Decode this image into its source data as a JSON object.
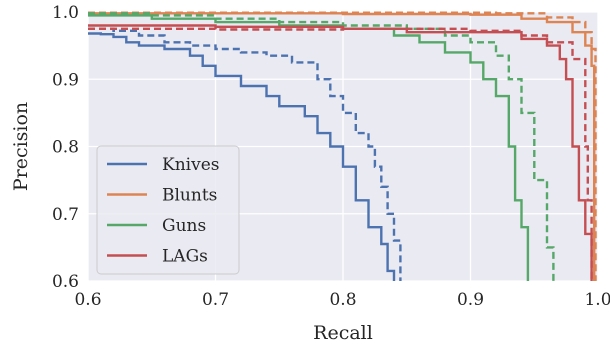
{
  "chart_data": {
    "type": "line",
    "xlabel": "Recall",
    "ylabel": "Precision",
    "xlim": [
      0.6,
      1.0
    ],
    "ylim": [
      0.6,
      1.0
    ],
    "x_ticks": [
      0.6,
      0.7,
      0.8,
      0.9,
      1.0
    ],
    "x_tick_labels": [
      "0.6",
      "0.7",
      "0.8",
      "0.9",
      "1.0"
    ],
    "y_ticks": [
      0.6,
      0.7,
      0.8,
      0.9,
      1.0
    ],
    "y_tick_labels": [
      "0.6",
      "0.7",
      "0.8",
      "0.9",
      "1.0"
    ],
    "grid": true,
    "background": "#eaeaf2",
    "legend_position": "lower-left",
    "line_styles": [
      "solid",
      "dashed"
    ],
    "series": [
      {
        "name": "Knives",
        "color": "#4c72b0",
        "solid": [
          [
            0.6,
            0.968
          ],
          [
            0.61,
            0.967
          ],
          [
            0.62,
            0.963
          ],
          [
            0.63,
            0.955
          ],
          [
            0.64,
            0.95
          ],
          [
            0.66,
            0.945
          ],
          [
            0.68,
            0.935
          ],
          [
            0.69,
            0.92
          ],
          [
            0.7,
            0.905
          ],
          [
            0.72,
            0.89
          ],
          [
            0.74,
            0.875
          ],
          [
            0.75,
            0.86
          ],
          [
            0.77,
            0.845
          ],
          [
            0.78,
            0.82
          ],
          [
            0.79,
            0.8
          ],
          [
            0.8,
            0.785
          ],
          [
            0.8,
            0.77
          ],
          [
            0.81,
            0.75
          ],
          [
            0.81,
            0.72
          ],
          [
            0.82,
            0.7
          ],
          [
            0.82,
            0.68
          ],
          [
            0.83,
            0.655
          ],
          [
            0.835,
            0.635
          ],
          [
            0.835,
            0.615
          ],
          [
            0.84,
            0.6
          ]
        ],
        "dashed": [
          [
            0.6,
            0.975
          ],
          [
            0.62,
            0.972
          ],
          [
            0.64,
            0.965
          ],
          [
            0.66,
            0.955
          ],
          [
            0.68,
            0.95
          ],
          [
            0.7,
            0.945
          ],
          [
            0.72,
            0.94
          ],
          [
            0.74,
            0.935
          ],
          [
            0.76,
            0.925
          ],
          [
            0.78,
            0.9
          ],
          [
            0.79,
            0.875
          ],
          [
            0.8,
            0.85
          ],
          [
            0.81,
            0.82
          ],
          [
            0.82,
            0.8
          ],
          [
            0.825,
            0.77
          ],
          [
            0.83,
            0.74
          ],
          [
            0.835,
            0.7
          ],
          [
            0.84,
            0.66
          ],
          [
            0.845,
            0.6
          ]
        ]
      },
      {
        "name": "Blunts",
        "color": "#dd8452",
        "solid": [
          [
            0.6,
            0.998
          ],
          [
            0.7,
            0.998
          ],
          [
            0.8,
            0.997
          ],
          [
            0.9,
            0.996
          ],
          [
            0.94,
            0.99
          ],
          [
            0.96,
            0.985
          ],
          [
            0.98,
            0.97
          ],
          [
            0.99,
            0.95
          ],
          [
            0.995,
            0.92
          ],
          [
            0.997,
            0.6
          ]
        ],
        "dashed": [
          [
            0.6,
            0.999
          ],
          [
            0.8,
            0.999
          ],
          [
            0.92,
            0.998
          ],
          [
            0.96,
            0.992
          ],
          [
            0.98,
            0.985
          ],
          [
            0.99,
            0.97
          ],
          [
            0.995,
            0.945
          ],
          [
            0.998,
            0.6
          ]
        ]
      },
      {
        "name": "Guns",
        "color": "#55a868",
        "solid": [
          [
            0.6,
            0.995
          ],
          [
            0.65,
            0.99
          ],
          [
            0.7,
            0.985
          ],
          [
            0.75,
            0.98
          ],
          [
            0.8,
            0.975
          ],
          [
            0.84,
            0.965
          ],
          [
            0.86,
            0.955
          ],
          [
            0.88,
            0.94
          ],
          [
            0.9,
            0.925
          ],
          [
            0.91,
            0.9
          ],
          [
            0.92,
            0.875
          ],
          [
            0.93,
            0.84
          ],
          [
            0.93,
            0.8
          ],
          [
            0.935,
            0.72
          ],
          [
            0.94,
            0.68
          ],
          [
            0.945,
            0.6
          ]
        ],
        "dashed": [
          [
            0.6,
            0.998
          ],
          [
            0.65,
            0.995
          ],
          [
            0.7,
            0.99
          ],
          [
            0.75,
            0.985
          ],
          [
            0.8,
            0.98
          ],
          [
            0.85,
            0.975
          ],
          [
            0.88,
            0.965
          ],
          [
            0.9,
            0.955
          ],
          [
            0.92,
            0.935
          ],
          [
            0.93,
            0.9
          ],
          [
            0.94,
            0.85
          ],
          [
            0.95,
            0.75
          ],
          [
            0.96,
            0.65
          ],
          [
            0.965,
            0.6
          ]
        ]
      },
      {
        "name": "LAGs",
        "color": "#c44e52",
        "solid": [
          [
            0.6,
            0.98
          ],
          [
            0.7,
            0.978
          ],
          [
            0.8,
            0.975
          ],
          [
            0.85,
            0.97
          ],
          [
            0.9,
            0.97
          ],
          [
            0.94,
            0.96
          ],
          [
            0.96,
            0.95
          ],
          [
            0.97,
            0.93
          ],
          [
            0.975,
            0.9
          ],
          [
            0.98,
            0.8
          ],
          [
            0.985,
            0.72
          ],
          [
            0.99,
            0.67
          ],
          [
            0.995,
            0.6
          ]
        ],
        "dashed": [
          [
            0.6,
            0.975
          ],
          [
            0.7,
            0.974
          ],
          [
            0.8,
            0.975
          ],
          [
            0.9,
            0.972
          ],
          [
            0.94,
            0.965
          ],
          [
            0.96,
            0.955
          ],
          [
            0.98,
            0.93
          ],
          [
            0.99,
            0.8
          ],
          [
            0.992,
            0.72
          ],
          [
            0.995,
            0.6
          ]
        ]
      }
    ]
  }
}
